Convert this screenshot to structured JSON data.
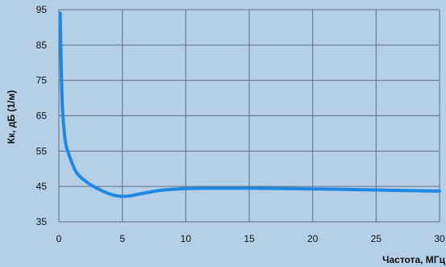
{
  "chart_data": {
    "type": "line",
    "xlabel": "Частота, МГц",
    "ylabel": "Кк, дБ (1/м)",
    "xlim": [
      0,
      30
    ],
    "ylim": [
      35,
      95
    ],
    "x_ticks": [
      0,
      5,
      10,
      15,
      20,
      25,
      30
    ],
    "y_ticks": [
      35,
      45,
      55,
      65,
      75,
      85,
      95
    ],
    "grid": true,
    "colors": {
      "background": "#b5cfe6",
      "grid": "#5f6f7a",
      "line": "#1e88e5"
    },
    "series": [
      {
        "x": [
          0.1,
          0.15,
          0.2,
          0.3,
          0.5,
          0.7,
          1.0,
          1.3,
          1.6,
          2.0,
          2.5,
          3.0,
          3.5,
          4.0,
          4.5,
          5.0,
          5.5,
          6.0,
          7.0,
          8.0,
          9.0,
          10.0,
          12.0,
          15.0,
          18.0,
          20.0,
          22.0,
          25.0,
          28.0,
          30.0
        ],
        "y": [
          94,
          85,
          76,
          66,
          58,
          55,
          52,
          49.5,
          48,
          46.8,
          45.5,
          44.5,
          43.6,
          42.9,
          42.4,
          42.2,
          42.3,
          42.6,
          43.3,
          43.9,
          44.2,
          44.4,
          44.5,
          44.5,
          44.4,
          44.3,
          44.2,
          44.0,
          43.8,
          43.7
        ]
      }
    ]
  }
}
